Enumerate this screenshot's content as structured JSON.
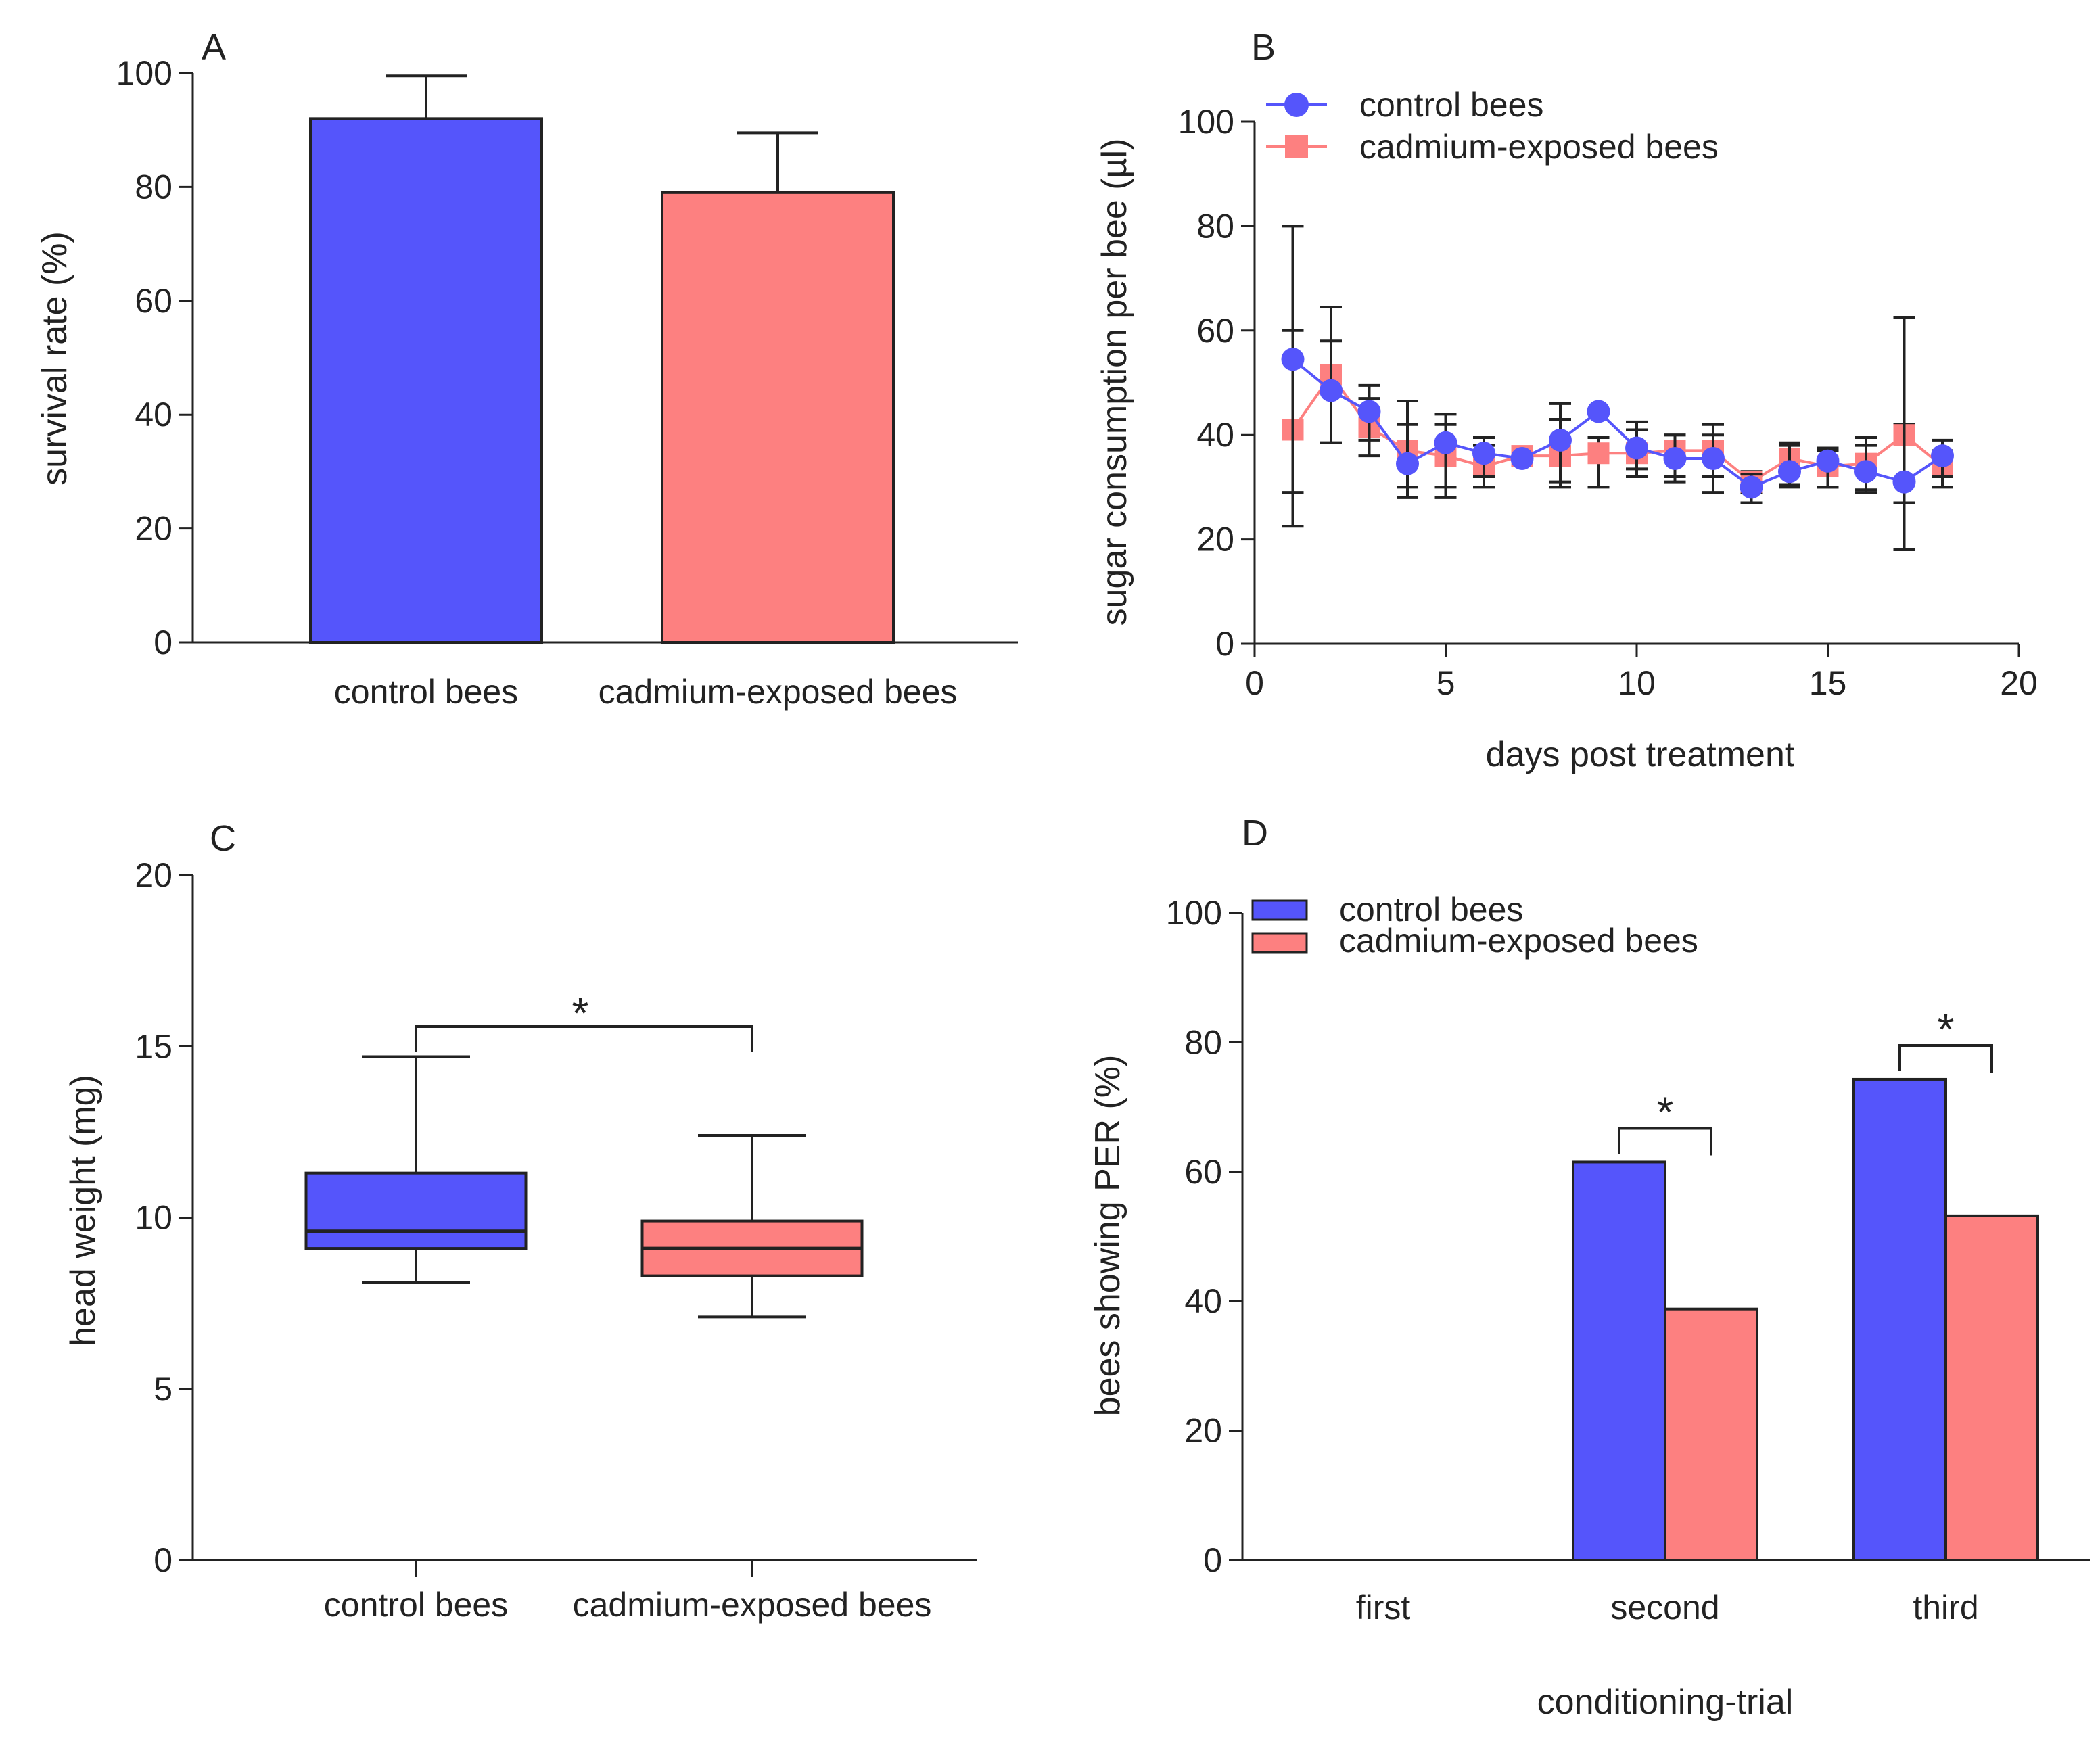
{
  "colors": {
    "control": "#5555fb",
    "cadmium": "#fd8080",
    "ink": "#222222"
  },
  "chart_data": [
    {
      "id": "A",
      "panel_label": "A",
      "type": "bar",
      "categories": [
        "control bees",
        "cadmium-exposed bees"
      ],
      "values": [
        92,
        79
      ],
      "errors_upper": [
        99.5,
        89.5
      ],
      "ylabel": "survival rate (%)",
      "xlabel": "",
      "ylim": [
        0,
        100
      ],
      "yticks": [
        0,
        20,
        40,
        60,
        80,
        100
      ]
    },
    {
      "id": "B",
      "panel_label": "B",
      "type": "line",
      "xlabel": "days post treatment",
      "ylabel": "sugar consumption per bee (µl)",
      "xlim": [
        0,
        20
      ],
      "ylim": [
        0,
        100
      ],
      "xticks": [
        0,
        5,
        10,
        15,
        20
      ],
      "yticks": [
        0,
        20,
        40,
        60,
        80,
        100
      ],
      "legend_position": "top-left",
      "series": [
        {
          "name": "control bees",
          "marker": "circle",
          "x": [
            1,
            2,
            3,
            4,
            5,
            6,
            7,
            8,
            9,
            10,
            11,
            12,
            13,
            14,
            15,
            16,
            17,
            18
          ],
          "y": [
            54.5,
            48.5,
            44.5,
            34.5,
            38.5,
            36.5,
            35.5,
            39,
            44.5,
            37.5,
            35.5,
            35.5,
            30,
            33,
            35,
            33,
            31,
            36
          ],
          "err_low": [
            29,
            38.5,
            39,
            28,
            28,
            32,
            35.5,
            31,
            44.5,
            33.5,
            31,
            29,
            27,
            30,
            30,
            29,
            18,
            32
          ],
          "err_high": [
            80,
            64.5,
            49.5,
            46.5,
            44,
            39.5,
            35.5,
            46,
            44.5,
            42.5,
            40,
            42,
            32.5,
            38.5,
            37.5,
            39.5,
            62.5,
            39
          ]
        },
        {
          "name": "cadmium-exposed bees",
          "marker": "square",
          "x": [
            1,
            2,
            3,
            4,
            5,
            6,
            7,
            8,
            9,
            10,
            11,
            12,
            13,
            14,
            15,
            16,
            17,
            18
          ],
          "y": [
            41,
            51.5,
            41.5,
            37,
            36,
            34,
            36,
            36,
            36.5,
            36.5,
            37,
            37,
            31,
            35.5,
            34,
            34.5,
            40,
            34
          ],
          "err_low": [
            22.5,
            38.5,
            36,
            30,
            30,
            30,
            36,
            30,
            30,
            32,
            32,
            32,
            29,
            30.5,
            30,
            29.5,
            27,
            30
          ],
          "err_high": [
            60,
            58,
            47,
            42,
            42,
            38,
            36,
            43,
            39.5,
            41,
            40,
            40,
            33,
            38,
            37,
            38,
            42,
            37
          ]
        }
      ]
    },
    {
      "id": "C",
      "panel_label": "C",
      "type": "box",
      "categories": [
        "control bees",
        "cadmium-exposed bees"
      ],
      "boxes": [
        {
          "min": 8.1,
          "q1": 9.1,
          "median": 9.6,
          "q3": 11.3,
          "max": 14.7
        },
        {
          "min": 7.1,
          "q1": 8.3,
          "median": 9.1,
          "q3": 9.9,
          "max": 12.4
        }
      ],
      "ylabel": "head weight (mg)",
      "xlabel": "",
      "ylim": [
        0,
        20
      ],
      "yticks": [
        0,
        5,
        10,
        15,
        20
      ],
      "significance": "*"
    },
    {
      "id": "D",
      "panel_label": "D",
      "type": "bar",
      "categories": [
        "first",
        "second",
        "third"
      ],
      "series": [
        {
          "name": "control bees",
          "values": [
            0,
            61.5,
            74.3
          ]
        },
        {
          "name": "cadmium-exposed bees",
          "values": [
            0,
            38.8,
            53.2
          ]
        }
      ],
      "significance": [
        "",
        "*",
        "*"
      ],
      "xlabel": "conditioning-trial",
      "ylabel": "bees showing PER (%)",
      "ylim": [
        0,
        100
      ],
      "yticks": [
        0,
        20,
        40,
        60,
        80,
        100
      ],
      "legend_position": "top-left"
    }
  ]
}
